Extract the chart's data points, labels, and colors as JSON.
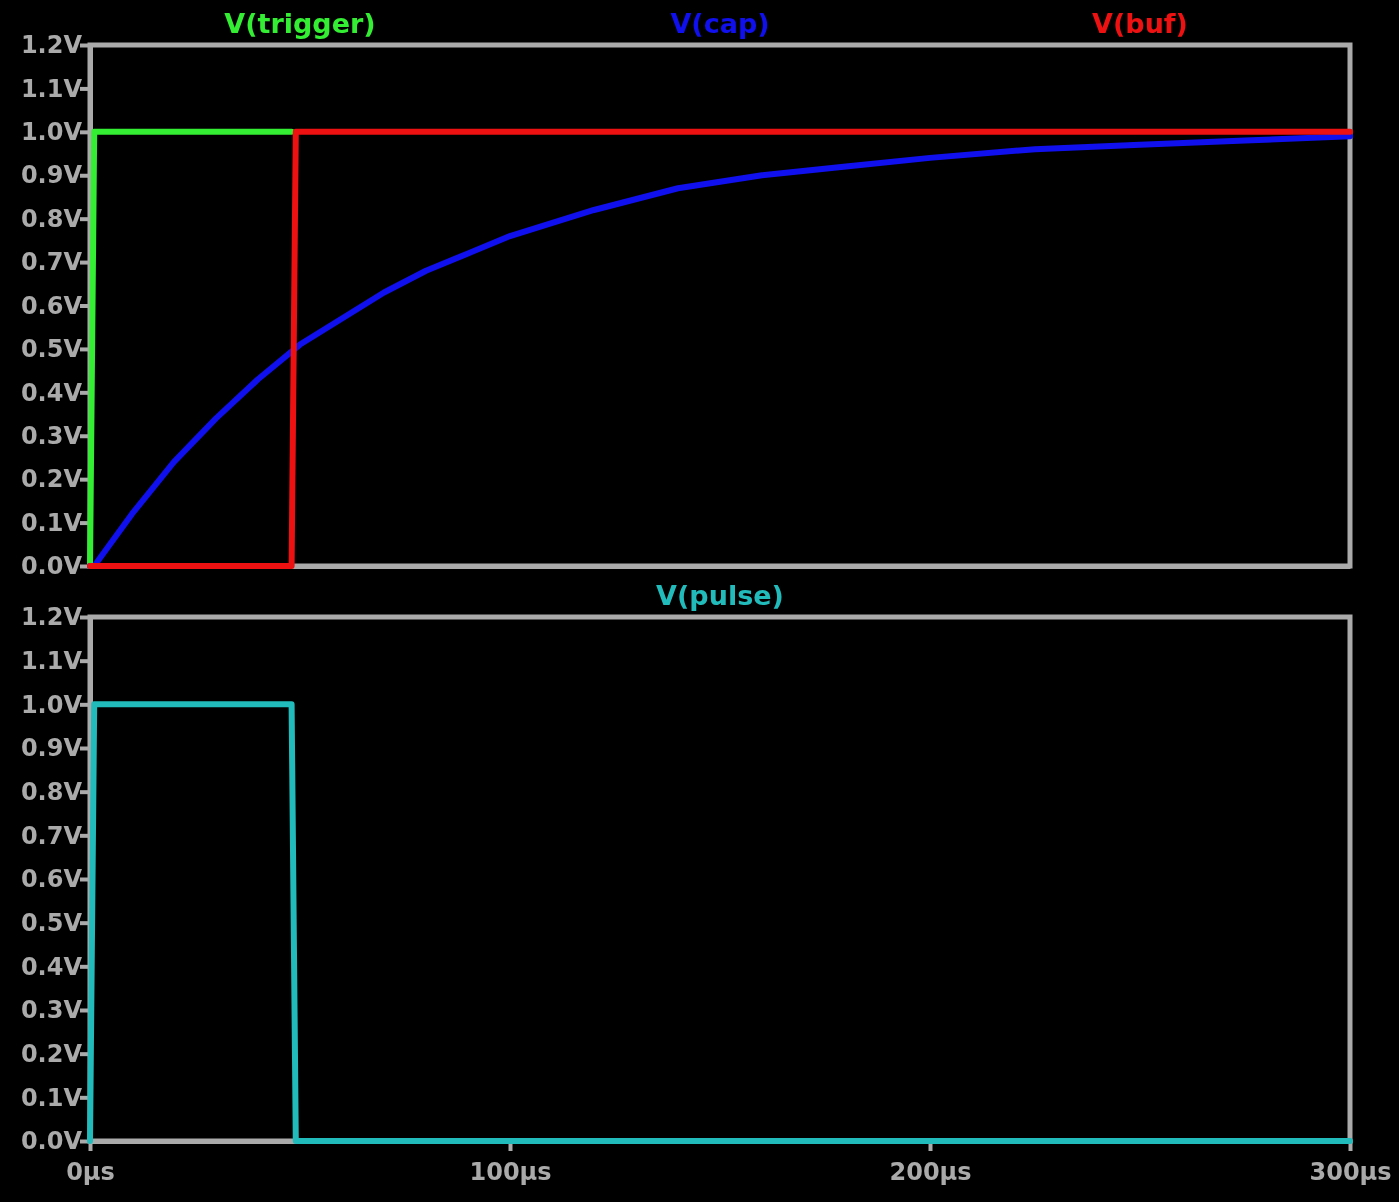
{
  "chart_data": [
    {
      "type": "line",
      "legend": "top",
      "tick_labels": "y",
      "xlim": [
        0,
        300
      ],
      "xticks": [
        {
          "value": 0,
          "label": null
        },
        {
          "value": 100,
          "label": null
        },
        {
          "value": 200,
          "label": null
        },
        {
          "value": 300,
          "label": null
        }
      ],
      "ylim": [
        0,
        1.2
      ],
      "yticks": [
        {
          "value": 0,
          "label": "0.0V"
        },
        {
          "value": 0.1,
          "label": "0.1V"
        },
        {
          "value": 0.2,
          "label": "0.2V"
        },
        {
          "value": 0.3,
          "label": "0.3V"
        },
        {
          "value": 0.4,
          "label": "0.4V"
        },
        {
          "value": 0.5,
          "label": "0.5V"
        },
        {
          "value": 0.6,
          "label": "0.6V"
        },
        {
          "value": 0.7,
          "label": "0.7V"
        },
        {
          "value": 0.8,
          "label": "0.8V"
        },
        {
          "value": 0.9,
          "label": "0.9V"
        },
        {
          "value": 1.0,
          "label": "1.0V"
        },
        {
          "value": 1.1,
          "label": "1.1V"
        },
        {
          "value": 1.2,
          "label": "1.2V"
        }
      ],
      "series": [
        {
          "name": "V(trigger)",
          "color": "#33ee33",
          "x": [
            0,
            1,
            48
          ],
          "values": [
            0,
            1,
            1
          ]
        },
        {
          "name": "V(cap)",
          "color": "#1010ee",
          "x": [
            0,
            1,
            10,
            20,
            30,
            40,
            50,
            60,
            70,
            80,
            90,
            100,
            120,
            140,
            160,
            180,
            200,
            225,
            250,
            275,
            300
          ],
          "values": [
            0,
            0,
            0.12,
            0.24,
            0.34,
            0.43,
            0.51,
            0.57,
            0.63,
            0.68,
            0.72,
            0.76,
            0.82,
            0.87,
            0.9,
            0.92,
            0.94,
            0.96,
            0.97,
            0.98,
            0.99
          ]
        },
        {
          "name": "V(buf)",
          "color": "#ee1111",
          "x": [
            0,
            48,
            49,
            300
          ],
          "values": [
            0,
            0,
            1,
            1
          ]
        }
      ]
    },
    {
      "type": "line",
      "legend": "top",
      "xlim": [
        0,
        300
      ],
      "xticks": [
        {
          "value": 0,
          "label": "0µs"
        },
        {
          "value": 100,
          "label": "100µs"
        },
        {
          "value": 200,
          "label": "200µs"
        },
        {
          "value": 300,
          "label": "300µs"
        }
      ],
      "ylim": [
        0,
        1.2
      ],
      "yticks": [
        {
          "value": 0,
          "label": "0.0V"
        },
        {
          "value": 0.1,
          "label": "0.1V"
        },
        {
          "value": 0.2,
          "label": "0.2V"
        },
        {
          "value": 0.3,
          "label": "0.3V"
        },
        {
          "value": 0.4,
          "label": "0.4V"
        },
        {
          "value": 0.5,
          "label": "0.5V"
        },
        {
          "value": 0.6,
          "label": "0.6V"
        },
        {
          "value": 0.7,
          "label": "0.7V"
        },
        {
          "value": 0.8,
          "label": "0.8V"
        },
        {
          "value": 0.9,
          "label": "0.9V"
        },
        {
          "value": 1.0,
          "label": "1.0V"
        },
        {
          "value": 1.1,
          "label": "1.1V"
        },
        {
          "value": 1.2,
          "label": "1.2V"
        }
      ],
      "series": [
        {
          "name": "V(pulse)",
          "color": "#22bbbb",
          "x": [
            0,
            1,
            48,
            49,
            300
          ],
          "values": [
            0,
            1,
            1,
            0,
            0
          ]
        }
      ]
    }
  ]
}
